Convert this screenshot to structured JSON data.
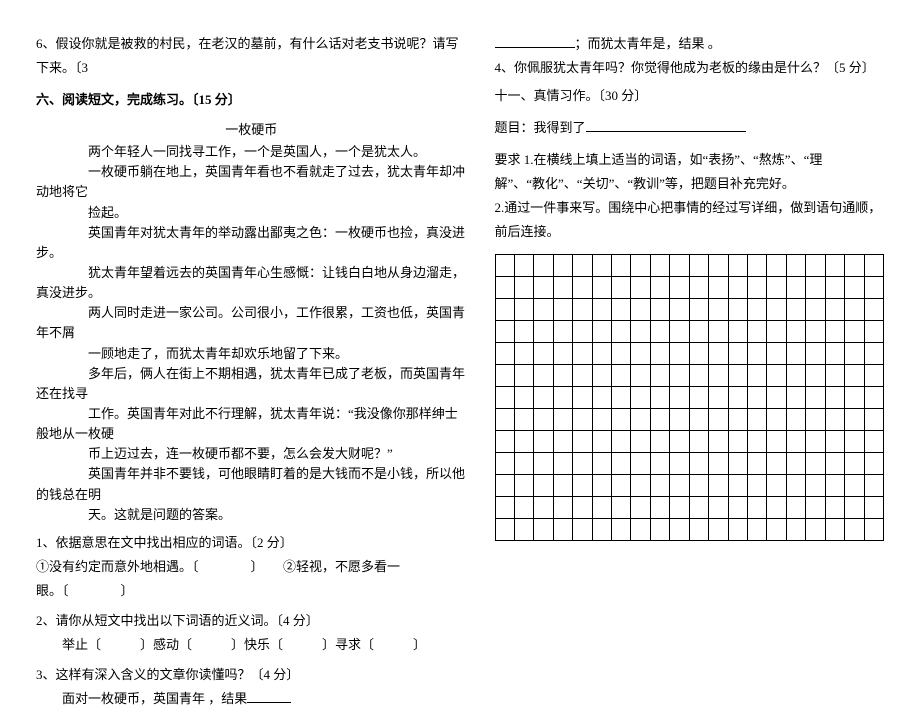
{
  "left": {
    "q6": "6、假设你就是被救的村民，在老汉的墓前，有什么话对老支书说呢？请写下来。〔3",
    "section6": "六、阅读短文，完成练习。〔15 分〕",
    "story_title": "一枚硬币",
    "story": {
      "p1": "　　　　两个年轻人一同找寻工作，一个是英国人，一个是犹太人。",
      "p2": "　　　　一枚硬币躺在地上，英国青年看也不看就走了过去，犹太青年却冲动地将它",
      "p3": "　　　　捡起。",
      "p4": "　　　　英国青年对犹太青年的举动露出鄙夷之色：一枚硬币也捡，真没进步。",
      "p5": "　　　　犹太青年望着远去的英国青年心生感慨：让钱白白地从身边溜走，真没进步。",
      "p6": "　　　　两人同时走进一家公司。公司很小，工作很累，工资也低，英国青年不屑",
      "p7": "　　　　一顾地走了，而犹太青年却欢乐地留了下来。",
      "p8": "　　　　多年后，俩人在街上不期相遇，犹太青年已成了老板，而英国青年还在找寻",
      "p9": "　　　　工作。英国青年对此不行理解，犹太青年说：“我没像你那样绅士般地从一枚硬",
      "p10": "　　　　币上迈过去，连一枚硬币都不要，怎么会发大财呢？”",
      "p11": "　　　　英国青年并非不要钱，可他眼睛盯着的是大钱而不是小钱，所以他的钱总在明",
      "p12": "　　　　天。这就是问题的答案。"
    },
    "q1": "1、依据意思在文中找出相应的词语。〔2 分〕",
    "q1a": "①没有约定而意外地相遇。〔　　　　〕　　②轻视，不愿多看一",
    "q1b": "眼。〔　　　　〕",
    "q2": "2、请你从短文中找出以下词语的近义词。〔4 分〕",
    "q2line": "　　举止〔　　　〕感动〔　　　〕快乐〔　　　〕寻求〔　　　〕",
    "q3": "3、这样有深入含义的文章你读懂吗？〔4 分〕",
    "q3a": "　　面对一枚硬币，英国青年  ，结果"
  },
  "right": {
    "line1a": "；而犹太青年是，结果 。",
    "q4": "4、你佩服犹太青年吗？你觉得他成为老板的缘由是什么？〔5 分〕",
    "section11": "十一、真情习作。〔30 分〕",
    "topic_label": "题目：我得到了",
    "req1": "要求  1.在横线上填上适当的词语，如“表扬”、“熬炼”、“理",
    "req1b": "解”、“教化”、“关切”、“教训”等，把题目补充完好。",
    "req2": "2.通过一件事来写。围绕中心把事情的经过写详细，做到语句通顺，",
    "req2b": "前后连接。"
  },
  "grid": {
    "rows": 13,
    "cols": 20
  }
}
